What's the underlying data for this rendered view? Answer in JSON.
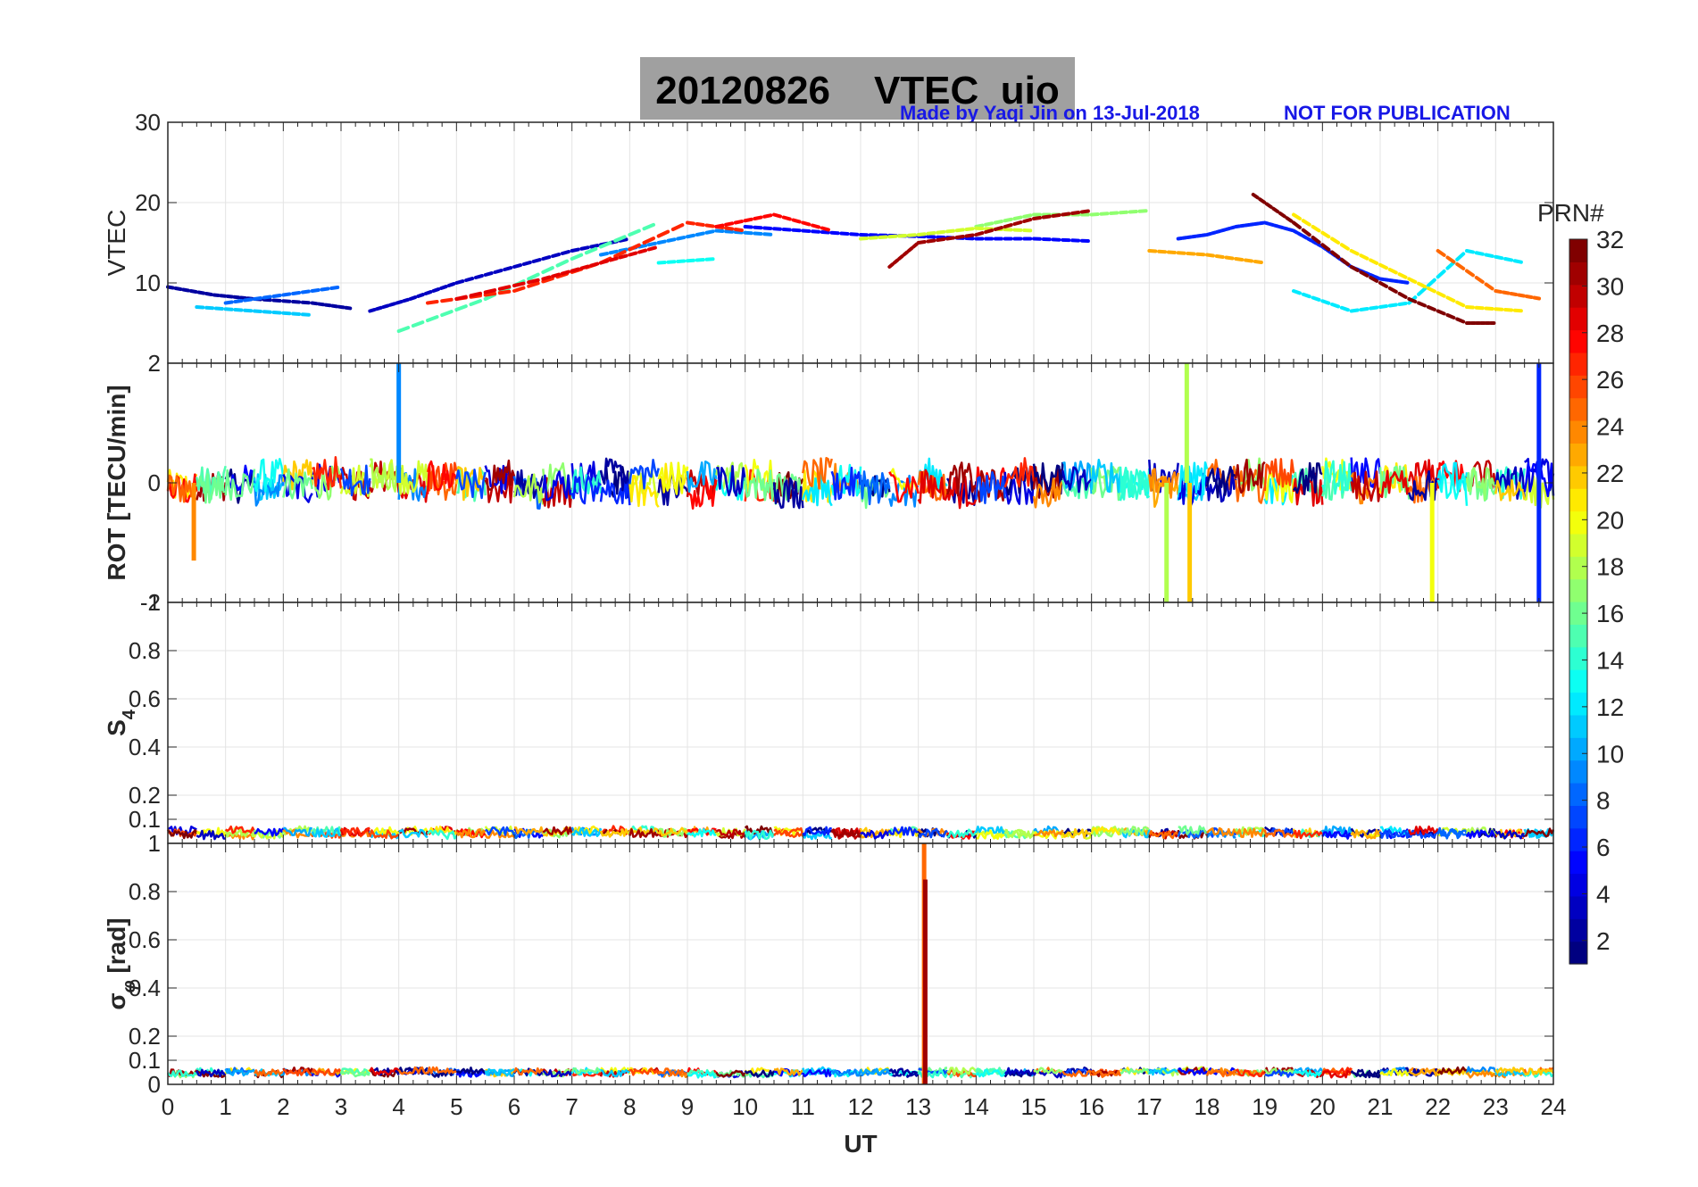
{
  "header": {
    "title_date": "20120826",
    "title_suffix": "VTEC  uio",
    "credit": "Made by Yaqi Jin on 13-Jul-2018",
    "notice": "NOT FOR PUBLICATION"
  },
  "colorbar": {
    "label": "PRN#",
    "ticks": [
      2,
      4,
      6,
      8,
      10,
      12,
      14,
      16,
      18,
      20,
      22,
      24,
      26,
      28,
      30,
      32
    ],
    "range": [
      1,
      32
    ],
    "colormap": "jet"
  },
  "chart_data": [
    {
      "type": "line",
      "panel": "vtec",
      "ylabel": "VTEC",
      "ylim": [
        0,
        30
      ],
      "yticks": [
        10,
        20,
        30
      ],
      "xlim": [
        0,
        24
      ],
      "grid": true,
      "series": [
        {
          "prn": 2,
          "x": [
            0.0,
            0.8,
            1.5,
            2.5,
            3.2
          ],
          "y": [
            9.5,
            8.5,
            8.0,
            7.5,
            6.8
          ]
        },
        {
          "prn": 3,
          "x": [
            3.5,
            4.2,
            5.0,
            6.0,
            7.0,
            8.0
          ],
          "y": [
            6.5,
            8.0,
            10.0,
            12.0,
            14.0,
            15.5
          ]
        },
        {
          "prn": 5,
          "x": [
            10.0,
            11.0,
            12.0,
            13.0,
            14.0,
            15.0,
            16.0
          ],
          "y": [
            17.0,
            16.5,
            16.0,
            15.8,
            15.5,
            15.5,
            15.2
          ]
        },
        {
          "prn": 6,
          "x": [
            17.5,
            18.0,
            18.5,
            19.0,
            19.5,
            20.0,
            20.5,
            21.0,
            21.5
          ],
          "y": [
            15.5,
            16.0,
            17.0,
            17.5,
            16.5,
            14.5,
            12.0,
            10.5,
            10.0
          ]
        },
        {
          "prn": 8,
          "x": [
            1.0,
            2.0,
            3.0
          ],
          "y": [
            7.5,
            8.5,
            9.5
          ]
        },
        {
          "prn": 9,
          "x": [
            7.5,
            8.5,
            9.5,
            10.5
          ],
          "y": [
            13.5,
            15.0,
            16.5,
            16.0
          ]
        },
        {
          "prn": 11,
          "x": [
            0.5,
            1.5,
            2.5
          ],
          "y": [
            7.0,
            6.5,
            6.0
          ]
        },
        {
          "prn": 12,
          "x": [
            19.5,
            20.5,
            21.5,
            22.5,
            23.5
          ],
          "y": [
            9.0,
            6.5,
            7.5,
            14.0,
            12.5
          ]
        },
        {
          "prn": 13,
          "x": [
            8.5,
            9.5
          ],
          "y": [
            12.5,
            13.0
          ]
        },
        {
          "prn": 15,
          "x": [
            4.0,
            5.5,
            7.0,
            8.5
          ],
          "y": [
            4.0,
            8.0,
            13.0,
            17.5
          ]
        },
        {
          "prn": 17,
          "x": [
            14.0,
            15.0,
            16.0,
            17.0
          ],
          "y": [
            17.0,
            18.5,
            18.5,
            19.0
          ]
        },
        {
          "prn": 19,
          "x": [
            12.0,
            13.0,
            14.0,
            15.0
          ],
          "y": [
            15.5,
            16.0,
            16.8,
            16.5
          ]
        },
        {
          "prn": 21,
          "x": [
            19.5,
            20.5,
            21.5,
            22.5,
            23.5
          ],
          "y": [
            18.5,
            14.0,
            10.5,
            7.0,
            6.5
          ]
        },
        {
          "prn": 23,
          "x": [
            17.0,
            18.0,
            19.0
          ],
          "y": [
            14.0,
            13.5,
            12.5
          ]
        },
        {
          "prn": 25,
          "x": [
            22.0,
            23.0,
            23.8
          ],
          "y": [
            14.0,
            9.0,
            8.0
          ]
        },
        {
          "prn": 27,
          "x": [
            4.5,
            6.0,
            7.5,
            9.0,
            10.0
          ],
          "y": [
            7.5,
            9.0,
            12.5,
            17.5,
            16.5
          ]
        },
        {
          "prn": 28,
          "x": [
            9.5,
            10.5,
            11.5
          ],
          "y": [
            17.0,
            18.5,
            16.5
          ]
        },
        {
          "prn": 29,
          "x": [
            5.0,
            6.5,
            7.5,
            8.5
          ],
          "y": [
            8.0,
            10.5,
            12.5,
            14.5
          ]
        },
        {
          "prn": 31,
          "x": [
            12.5,
            13.0,
            14.0,
            15.0,
            16.0
          ],
          "y": [
            12.0,
            15.0,
            16.0,
            18.0,
            19.0
          ]
        },
        {
          "prn": 32,
          "x": [
            18.8,
            19.5,
            20.5,
            21.5,
            22.5,
            23.0
          ],
          "y": [
            21.0,
            17.5,
            12.0,
            8.0,
            5.0,
            5.0
          ]
        }
      ]
    },
    {
      "type": "line",
      "panel": "rot",
      "ylabel": "ROT [TECU/min]",
      "ylim": [
        -2,
        2
      ],
      "yticks": [
        -2,
        0,
        2
      ],
      "xlim": [
        0,
        24
      ],
      "grid": true,
      "noise_band": [
        -0.4,
        0.4
      ],
      "spikes": [
        {
          "prn": 9,
          "x": 4.0,
          "y_from": 0,
          "y_to": 2.0
        },
        {
          "prn": 24,
          "x": 0.45,
          "y_from": 0,
          "y_to": -1.3
        },
        {
          "prn": 18,
          "x": 17.3,
          "y_from": 0,
          "y_to": -2.0
        },
        {
          "prn": 18,
          "x": 17.65,
          "y_from": 0,
          "y_to": 2.0
        },
        {
          "prn": 22,
          "x": 17.7,
          "y_from": 0,
          "y_to": -2.0
        },
        {
          "prn": 20,
          "x": 21.9,
          "y_from": 0,
          "y_to": -2.0
        },
        {
          "prn": 6,
          "x": 23.75,
          "y_from": -2.0,
          "y_to": 2.0
        }
      ]
    },
    {
      "type": "line",
      "panel": "s4",
      "ylabel": "S4",
      "ylim": [
        0,
        1
      ],
      "yticks": [
        0.1,
        0.2,
        0.4,
        0.6,
        0.8,
        1
      ],
      "xlim": [
        0,
        24
      ],
      "grid": true,
      "baseline_band": [
        0.02,
        0.07
      ]
    },
    {
      "type": "line",
      "panel": "sigma_phi",
      "ylabel": "σφ [rad]",
      "ylim": [
        0,
        1
      ],
      "yticks": [
        0,
        0.1,
        0.2,
        0.4,
        0.6,
        0.8,
        1
      ],
      "xlim": [
        0,
        24
      ],
      "xticks": [
        0,
        1,
        2,
        3,
        4,
        5,
        6,
        7,
        8,
        9,
        10,
        11,
        12,
        13,
        14,
        15,
        16,
        17,
        18,
        19,
        20,
        21,
        22,
        23,
        24
      ],
      "xlabel": "UT",
      "grid": true,
      "baseline_band": [
        0.03,
        0.07
      ],
      "spikes": [
        {
          "prn": 25,
          "x": 13.1,
          "y_from": 0,
          "y_to": 1.0
        },
        {
          "prn": 31,
          "x": 13.12,
          "y_from": 0,
          "y_to": 0.85
        }
      ]
    }
  ]
}
